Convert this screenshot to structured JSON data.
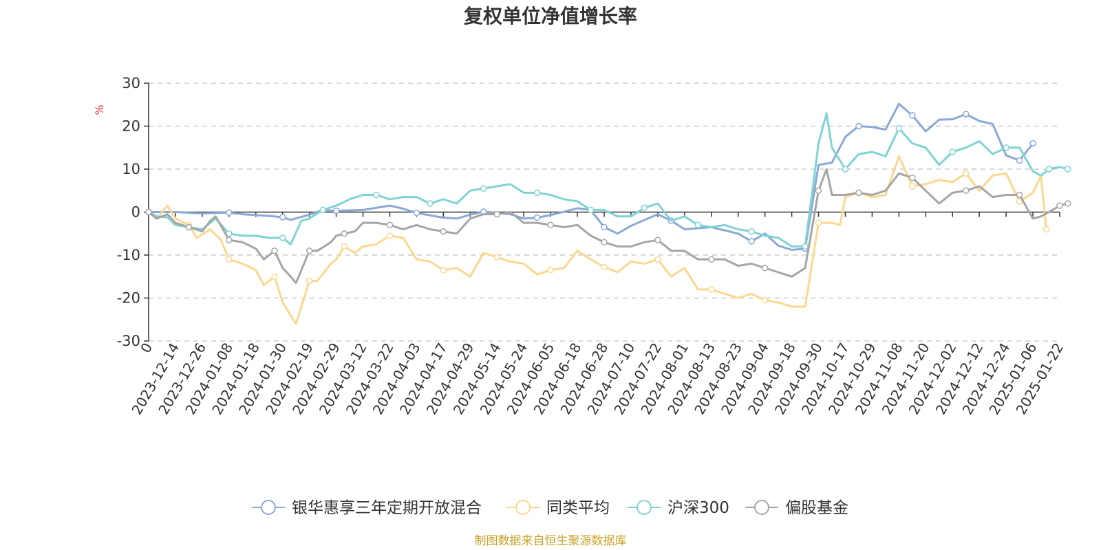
{
  "chart_data": {
    "type": "line",
    "title": "复权单位净值增长率",
    "ylabel": "%",
    "ylim": [
      -30,
      30
    ],
    "yticks": [
      30,
      20,
      10,
      0,
      -10,
      -20,
      -30
    ],
    "grid": true,
    "legend_position": "bottom",
    "x_tick_labels": [
      "0",
      "2023-12-14",
      "2023-12-26",
      "2024-01-08",
      "2024-01-18",
      "2024-01-30",
      "2024-02-19",
      "2024-02-29",
      "2024-03-12",
      "2024-03-22",
      "2024-04-03",
      "2024-04-17",
      "2024-04-29",
      "2024-05-14",
      "2024-05-24",
      "2024-06-05",
      "2024-06-18",
      "2024-06-28",
      "2024-07-10",
      "2024-07-22",
      "2024-08-01",
      "2024-08-13",
      "2024-08-23",
      "2024-09-04",
      "2024-09-18",
      "2024-09-30",
      "2024-10-17",
      "2024-10-29",
      "2024-11-08",
      "2024-11-20",
      "2024-12-02",
      "2024-12-12",
      "2024-12-24",
      "2025-01-06",
      "2025-01-22"
    ],
    "series": [
      {
        "name": "银华惠享三年定期开放混合",
        "color": "#8aa9d6",
        "points": [
          [
            0,
            0
          ],
          [
            1,
            0
          ],
          [
            2,
            -0.3
          ],
          [
            2.5,
            -0.2
          ],
          [
            3,
            -0.1
          ],
          [
            3.5,
            -0.5
          ],
          [
            4,
            -0.7
          ],
          [
            4.5,
            -0.9
          ],
          [
            5,
            -1.2
          ],
          [
            5.3,
            -1.8
          ],
          [
            6,
            -0.6
          ],
          [
            6.5,
            0.5
          ],
          [
            7,
            0.3
          ],
          [
            8,
            0.5
          ],
          [
            9,
            1.5
          ],
          [
            9.5,
            0.8
          ],
          [
            10,
            -0.2
          ],
          [
            11,
            -1.3
          ],
          [
            11.5,
            -1.5
          ],
          [
            12,
            -0.6
          ],
          [
            12.5,
            0.1
          ],
          [
            13,
            -0.2
          ],
          [
            13.5,
            -0.5
          ],
          [
            14,
            -1.5
          ],
          [
            14.5,
            -1.3
          ],
          [
            15,
            -0.7
          ],
          [
            16,
            0.9
          ],
          [
            16.5,
            0.5
          ],
          [
            17,
            -3.5
          ],
          [
            17.5,
            -5
          ],
          [
            18,
            -3.2
          ],
          [
            19,
            -0.5
          ],
          [
            19.5,
            -2
          ],
          [
            20,
            -4
          ],
          [
            21,
            -3.5
          ],
          [
            22,
            -5
          ],
          [
            22.5,
            -6.8
          ],
          [
            23,
            -5
          ],
          [
            23.5,
            -7.8
          ],
          [
            24,
            -8.8
          ],
          [
            24.5,
            -8.5
          ],
          [
            25,
            11
          ],
          [
            25.5,
            11.5
          ],
          [
            26,
            17.5
          ],
          [
            26.5,
            20
          ],
          [
            27,
            19.8
          ],
          [
            27.5,
            19.2
          ],
          [
            28,
            25.2
          ],
          [
            28.5,
            22.5
          ],
          [
            29,
            18.8
          ],
          [
            29.5,
            21.5
          ],
          [
            30,
            21.6
          ],
          [
            30.5,
            22.8
          ],
          [
            31,
            21.2
          ],
          [
            31.5,
            20.5
          ],
          [
            32,
            13.2
          ],
          [
            32.5,
            12
          ],
          [
            33,
            16
          ]
        ]
      },
      {
        "name": "同类平均",
        "color": "#fcd78e",
        "points": [
          [
            0,
            0
          ],
          [
            0.3,
            -1.5
          ],
          [
            0.7,
            1.5
          ],
          [
            1,
            -1.5
          ],
          [
            1.5,
            -3
          ],
          [
            1.8,
            -6
          ],
          [
            2.3,
            -4
          ],
          [
            2.7,
            -6.5
          ],
          [
            3,
            -11
          ],
          [
            3.5,
            -12
          ],
          [
            4,
            -13.5
          ],
          [
            4.3,
            -17
          ],
          [
            4.7,
            -15
          ],
          [
            5,
            -21
          ],
          [
            5.3,
            -24
          ],
          [
            5.5,
            -26
          ],
          [
            6,
            -16
          ],
          [
            6.3,
            -16
          ],
          [
            6.8,
            -12
          ],
          [
            7,
            -11
          ],
          [
            7.3,
            -8
          ],
          [
            7.7,
            -9.5
          ],
          [
            8,
            -8
          ],
          [
            8.5,
            -7.5
          ],
          [
            9,
            -5.5
          ],
          [
            9.5,
            -6
          ],
          [
            10,
            -11
          ],
          [
            10.5,
            -11.5
          ],
          [
            11,
            -13.5
          ],
          [
            11.5,
            -13
          ],
          [
            12,
            -15
          ],
          [
            12.5,
            -9.5
          ],
          [
            13,
            -10.5
          ],
          [
            13.5,
            -11.5
          ],
          [
            14,
            -12
          ],
          [
            14.5,
            -14.5
          ],
          [
            15,
            -13.5
          ],
          [
            15.5,
            -13
          ],
          [
            16,
            -9
          ],
          [
            16.5,
            -11
          ],
          [
            17,
            -12.8
          ],
          [
            17.5,
            -14
          ],
          [
            18,
            -11.5
          ],
          [
            18.5,
            -12
          ],
          [
            19,
            -11
          ],
          [
            19.5,
            -15
          ],
          [
            20,
            -13
          ],
          [
            20.5,
            -18
          ],
          [
            21,
            -18
          ],
          [
            21.5,
            -19
          ],
          [
            22,
            -20
          ],
          [
            22.5,
            -19
          ],
          [
            23,
            -20.5
          ],
          [
            23.5,
            -21
          ],
          [
            24,
            -22
          ],
          [
            24.5,
            -22
          ],
          [
            25,
            -2.5
          ],
          [
            25.5,
            -2.5
          ],
          [
            25.8,
            -3
          ],
          [
            26,
            3.5
          ],
          [
            26.5,
            4.5
          ],
          [
            27,
            3.5
          ],
          [
            27.5,
            4
          ],
          [
            28,
            13
          ],
          [
            28.5,
            6
          ],
          [
            29,
            6.5
          ],
          [
            29.5,
            7.5
          ],
          [
            30,
            7
          ],
          [
            30.5,
            9
          ],
          [
            31,
            5
          ],
          [
            31.5,
            8.5
          ],
          [
            32,
            9
          ],
          [
            32.5,
            2.5
          ],
          [
            33,
            4.5
          ],
          [
            33.3,
            8.5
          ],
          [
            33.5,
            -4
          ]
        ]
      },
      {
        "name": "沪深300",
        "color": "#7fd3d3",
        "points": [
          [
            0,
            0
          ],
          [
            0.3,
            -1
          ],
          [
            0.7,
            -1.2
          ],
          [
            1,
            -3
          ],
          [
            1.5,
            -3.5
          ],
          [
            2,
            -4
          ],
          [
            2.3,
            -2.5
          ],
          [
            2.5,
            -1.5
          ],
          [
            3,
            -5
          ],
          [
            3.5,
            -5.5
          ],
          [
            4,
            -5.5
          ],
          [
            4.5,
            -6
          ],
          [
            5,
            -6
          ],
          [
            5.3,
            -7.5
          ],
          [
            5.7,
            -2
          ],
          [
            6,
            -1.5
          ],
          [
            6.5,
            0.5
          ],
          [
            7,
            1.5
          ],
          [
            7.5,
            3
          ],
          [
            8,
            4
          ],
          [
            8.5,
            4
          ],
          [
            9,
            3
          ],
          [
            9.5,
            3.5
          ],
          [
            10,
            3.5
          ],
          [
            10.5,
            2
          ],
          [
            11,
            3
          ],
          [
            11.5,
            2
          ],
          [
            12,
            5
          ],
          [
            12.5,
            5.5
          ],
          [
            13,
            6
          ],
          [
            13.5,
            6.5
          ],
          [
            14,
            4.5
          ],
          [
            14.5,
            4.5
          ],
          [
            15,
            4
          ],
          [
            15.5,
            3
          ],
          [
            16,
            2.5
          ],
          [
            16.5,
            0.5
          ],
          [
            17,
            0.5
          ],
          [
            17.5,
            -1
          ],
          [
            18,
            -1
          ],
          [
            18.5,
            1
          ],
          [
            19,
            2
          ],
          [
            19.5,
            -2
          ],
          [
            20,
            -1
          ],
          [
            20.5,
            -3
          ],
          [
            21,
            -3.5
          ],
          [
            21.5,
            -3
          ],
          [
            22,
            -4
          ],
          [
            22.5,
            -4.5
          ],
          [
            23,
            -5.5
          ],
          [
            23.5,
            -6
          ],
          [
            24,
            -8
          ],
          [
            24.5,
            -8
          ],
          [
            25,
            16
          ],
          [
            25.3,
            23
          ],
          [
            25.5,
            15
          ],
          [
            26,
            10
          ],
          [
            26.5,
            13.5
          ],
          [
            27,
            14
          ],
          [
            27.5,
            13
          ],
          [
            28,
            19.5
          ],
          [
            28.5,
            16
          ],
          [
            29,
            15
          ],
          [
            29.5,
            11
          ],
          [
            30,
            14
          ],
          [
            30.5,
            15
          ],
          [
            31,
            16.5
          ],
          [
            31.5,
            13.5
          ],
          [
            32,
            15
          ],
          [
            32.5,
            15
          ],
          [
            33,
            9.5
          ],
          [
            33.3,
            8.5
          ],
          [
            33.6,
            10
          ],
          [
            34,
            10.5
          ],
          [
            34.3,
            10
          ]
        ]
      },
      {
        "name": "偏股基金",
        "color": "#a5a5a5",
        "points": [
          [
            0,
            0
          ],
          [
            0.3,
            -1.5
          ],
          [
            0.7,
            -0.5
          ],
          [
            1,
            -2.5
          ],
          [
            1.5,
            -3.5
          ],
          [
            2,
            -4.5
          ],
          [
            2.3,
            -2
          ],
          [
            2.5,
            -1
          ],
          [
            3,
            -6.5
          ],
          [
            3.5,
            -7
          ],
          [
            4,
            -8.5
          ],
          [
            4.3,
            -11
          ],
          [
            4.7,
            -9
          ],
          [
            5,
            -13
          ],
          [
            5.3,
            -15
          ],
          [
            5.5,
            -16.5
          ],
          [
            6,
            -9
          ],
          [
            6.3,
            -9
          ],
          [
            6.8,
            -7
          ],
          [
            7,
            -5.5
          ],
          [
            7.3,
            -5
          ],
          [
            7.7,
            -4.5
          ],
          [
            8,
            -2.5
          ],
          [
            8.5,
            -2.5
          ],
          [
            9,
            -3
          ],
          [
            9.5,
            -4
          ],
          [
            10,
            -3
          ],
          [
            10.5,
            -4
          ],
          [
            11,
            -4.5
          ],
          [
            11.5,
            -5
          ],
          [
            12,
            -1.5
          ],
          [
            12.5,
            -0.5
          ],
          [
            13,
            -0.5
          ],
          [
            13.5,
            0
          ],
          [
            14,
            -2.5
          ],
          [
            14.5,
            -2.5
          ],
          [
            15,
            -3
          ],
          [
            15.5,
            -3.5
          ],
          [
            16,
            -3
          ],
          [
            16.5,
            -5.5
          ],
          [
            17,
            -7
          ],
          [
            17.5,
            -8
          ],
          [
            18,
            -8
          ],
          [
            18.5,
            -7
          ],
          [
            19,
            -6.5
          ],
          [
            19.5,
            -9
          ],
          [
            20,
            -9
          ],
          [
            20.5,
            -11
          ],
          [
            21,
            -11
          ],
          [
            21.5,
            -11
          ],
          [
            22,
            -12.5
          ],
          [
            22.5,
            -12
          ],
          [
            23,
            -13
          ],
          [
            23.5,
            -14
          ],
          [
            24,
            -15
          ],
          [
            24.5,
            -13
          ],
          [
            25,
            5
          ],
          [
            25.3,
            10
          ],
          [
            25.5,
            4
          ],
          [
            26,
            4
          ],
          [
            26.5,
            4.5
          ],
          [
            27,
            4
          ],
          [
            27.5,
            5
          ],
          [
            28,
            9
          ],
          [
            28.5,
            8
          ],
          [
            29,
            5
          ],
          [
            29.5,
            2
          ],
          [
            30,
            4.5
          ],
          [
            30.5,
            5
          ],
          [
            31,
            6
          ],
          [
            31.5,
            3.5
          ],
          [
            32,
            4
          ],
          [
            32.5,
            4
          ],
          [
            33,
            -1.5
          ],
          [
            33.3,
            -1
          ],
          [
            33.6,
            0
          ],
          [
            34,
            1.5
          ],
          [
            34.3,
            2
          ]
        ]
      }
    ]
  },
  "source_text": "制图数据来自恒生聚源数据库"
}
